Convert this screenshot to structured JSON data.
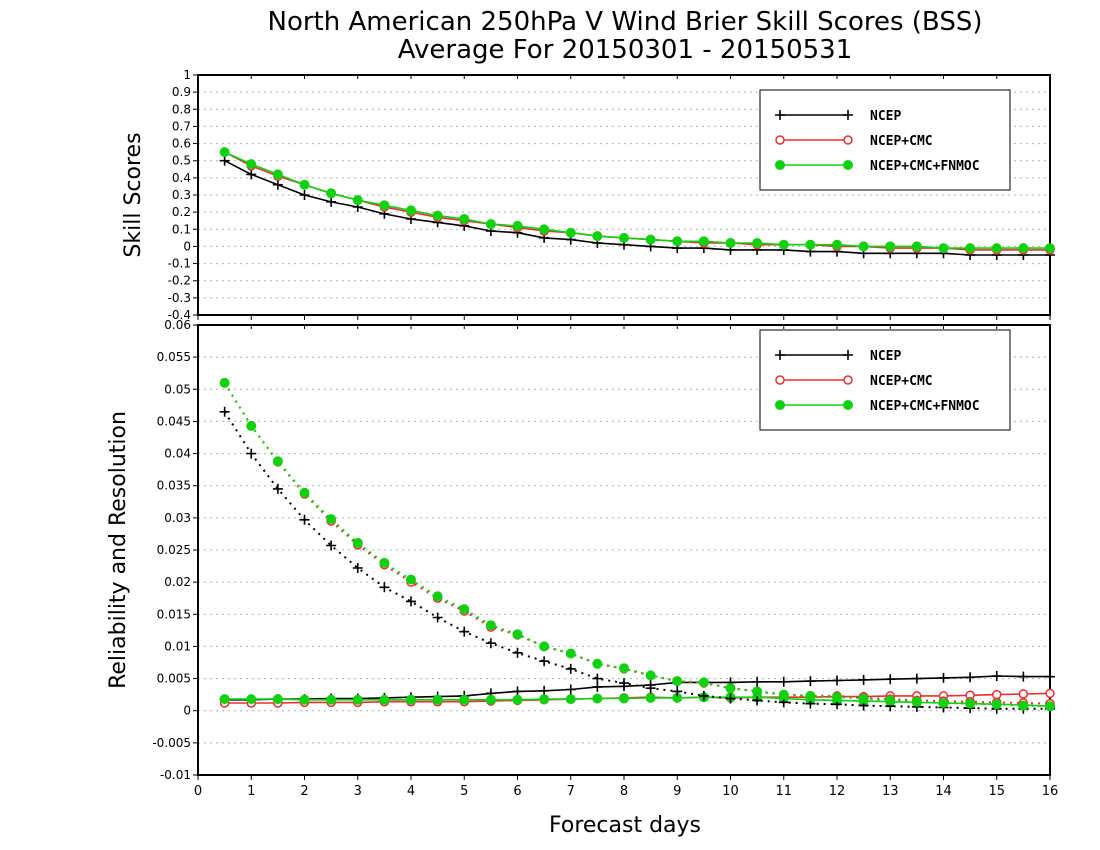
{
  "title_line1": "North American 250hPa V Wind Brier Skill Scores (BSS)",
  "title_line2": "Average For 20150301 - 20150531",
  "x_axis_label": "Forecast days",
  "colors": {
    "NCEP": "#000000",
    "NCEP+CMC": "#e83030",
    "NCEP+CMC+FNMOC": "#10d010"
  },
  "chart_data": [
    {
      "type": "line",
      "ylabel": "Skill Scores",
      "xlim": [
        0,
        16
      ],
      "ylim": [
        -0.4,
        1
      ],
      "yticks": [
        "-0.4",
        "-0.3",
        "-0.2",
        "-0.1",
        "0",
        "0.1",
        "0.2",
        "0.3",
        "0.4",
        "0.5",
        "0.6",
        "0.7",
        "0.8",
        "0.9",
        "1"
      ],
      "xticks": [
        "0",
        "1",
        "2",
        "3",
        "4",
        "5",
        "6",
        "7",
        "8",
        "9",
        "10",
        "11",
        "12",
        "13",
        "14",
        "15",
        "16"
      ],
      "grid": true,
      "legend": "top-right",
      "x": [
        0.5,
        1,
        1.5,
        2,
        2.5,
        3,
        3.5,
        4,
        4.5,
        5,
        5.5,
        6,
        6.5,
        7,
        7.5,
        8,
        8.5,
        9,
        9.5,
        10,
        10.5,
        11,
        11.5,
        12,
        12.5,
        13,
        13.5,
        14,
        14.5,
        15,
        15.5,
        16
      ],
      "series": [
        {
          "name": "NCEP",
          "marker": "plus",
          "style": "solid",
          "values": [
            0.5,
            0.42,
            0.36,
            0.3,
            0.26,
            0.23,
            0.19,
            0.16,
            0.14,
            0.12,
            0.09,
            0.08,
            0.05,
            0.04,
            0.02,
            0.01,
            0.0,
            -0.01,
            -0.01,
            -0.02,
            -0.02,
            -0.02,
            -0.03,
            -0.03,
            -0.04,
            -0.04,
            -0.04,
            -0.04,
            -0.05,
            -0.05,
            -0.05,
            -0.05
          ]
        },
        {
          "name": "NCEP+CMC",
          "marker": "open-circle",
          "style": "solid",
          "values": [
            0.55,
            0.47,
            0.41,
            0.36,
            0.31,
            0.27,
            0.23,
            0.2,
            0.17,
            0.15,
            0.13,
            0.11,
            0.09,
            0.08,
            0.06,
            0.05,
            0.04,
            0.03,
            0.02,
            0.02,
            0.01,
            0.01,
            0.01,
            0.0,
            0.0,
            -0.01,
            -0.01,
            -0.01,
            -0.02,
            -0.02,
            -0.02,
            -0.02
          ]
        },
        {
          "name": "NCEP+CMC+FNMOC",
          "marker": "filled-circle",
          "style": "solid",
          "values": [
            0.55,
            0.48,
            0.42,
            0.36,
            0.31,
            0.27,
            0.24,
            0.21,
            0.18,
            0.16,
            0.13,
            0.12,
            0.1,
            0.08,
            0.06,
            0.05,
            0.04,
            0.03,
            0.03,
            0.02,
            0.02,
            0.01,
            0.01,
            0.01,
            0.0,
            0.0,
            0.0,
            -0.01,
            -0.01,
            -0.01,
            -0.01,
            -0.01
          ]
        }
      ]
    },
    {
      "type": "line",
      "ylabel": "Reliability and Resolution",
      "xlabel": "Forecast days",
      "xlim": [
        0,
        16
      ],
      "ylim": [
        -0.01,
        0.06
      ],
      "yticks": [
        "-0.01",
        "-0.005",
        "0",
        "0.005",
        "0.01",
        "0.015",
        "0.02",
        "0.025",
        "0.03",
        "0.035",
        "0.04",
        "0.045",
        "0.05",
        "0.055",
        "0.06"
      ],
      "xticks": [
        "0",
        "1",
        "2",
        "3",
        "4",
        "5",
        "6",
        "7",
        "8",
        "9",
        "10",
        "11",
        "12",
        "13",
        "14",
        "15",
        "16"
      ],
      "grid": true,
      "legend": "top-right",
      "x": [
        0.5,
        1,
        1.5,
        2,
        2.5,
        3,
        3.5,
        4,
        4.5,
        5,
        5.5,
        6,
        6.5,
        7,
        7.5,
        8,
        8.5,
        9,
        9.5,
        10,
        10.5,
        11,
        11.5,
        12,
        12.5,
        13,
        13.5,
        14,
        14.5,
        15,
        15.5,
        16
      ],
      "series": [
        {
          "name": "NCEP",
          "marker": "plus",
          "style": "solid",
          "values": [
            0.0017,
            0.0017,
            0.0018,
            0.0018,
            0.0019,
            0.0019,
            0.002,
            0.0021,
            0.0022,
            0.0023,
            0.0027,
            0.003,
            0.0031,
            0.0033,
            0.0037,
            0.0038,
            0.004,
            0.0044,
            0.0044,
            0.0044,
            0.0045,
            0.0045,
            0.0046,
            0.0047,
            0.0048,
            0.0049,
            0.005,
            0.0051,
            0.0052,
            0.0054,
            0.0053,
            0.0053
          ]
        },
        {
          "name": "NCEP+CMC",
          "marker": "open-circle",
          "style": "solid",
          "values": [
            0.0012,
            0.0012,
            0.0012,
            0.0013,
            0.0013,
            0.0013,
            0.0014,
            0.0014,
            0.0014,
            0.0014,
            0.0015,
            0.0016,
            0.0017,
            0.0018,
            0.0019,
            0.002,
            0.0021,
            0.002,
            0.0021,
            0.002,
            0.0021,
            0.0021,
            0.0021,
            0.0022,
            0.0022,
            0.0023,
            0.0023,
            0.0023,
            0.0024,
            0.0025,
            0.0026,
            0.0027
          ]
        },
        {
          "name": "NCEP+CMC+FNMOC",
          "marker": "filled-circle",
          "style": "solid",
          "values": [
            0.0018,
            0.0018,
            0.0018,
            0.0017,
            0.0017,
            0.0017,
            0.0017,
            0.0017,
            0.0017,
            0.0017,
            0.0017,
            0.0017,
            0.0018,
            0.0018,
            0.0019,
            0.0019,
            0.002,
            0.002,
            0.0021,
            0.0021,
            0.0021,
            0.0019,
            0.0017,
            0.0016,
            0.0015,
            0.0014,
            0.0013,
            0.0012,
            0.0011,
            0.001,
            0.0009,
            0.0007
          ]
        },
        {
          "name": "",
          "legend_of": "NCEP",
          "marker": "plus",
          "style": "dotted",
          "values": [
            0.0465,
            0.04,
            0.0345,
            0.0297,
            0.0257,
            0.0222,
            0.0192,
            0.017,
            0.0145,
            0.0123,
            0.0105,
            0.009,
            0.0077,
            0.0065,
            0.005,
            0.0043,
            0.0035,
            0.003,
            0.0023,
            0.0019,
            0.0016,
            0.0013,
            0.0011,
            0.001,
            0.0008,
            0.0007,
            0.0006,
            0.0005,
            0.0004,
            0.0003,
            0.0003,
            0.0003
          ]
        },
        {
          "name": "",
          "legend_of": "NCEP+CMC",
          "marker": "open-circle",
          "style": "dotted",
          "values": [
            0.051,
            0.0443,
            0.0387,
            0.0337,
            0.0295,
            0.0258,
            0.0227,
            0.02,
            0.0175,
            0.0155,
            0.013,
            0.0118,
            0.01,
            0.0089,
            0.0073,
            0.0065,
            0.0055,
            0.0046,
            0.0043,
            0.0035,
            0.003,
            0.0025,
            0.0023,
            0.0023,
            0.002,
            0.0018,
            0.0016,
            0.0015,
            0.0014,
            0.0013,
            0.0012,
            0.0011
          ]
        },
        {
          "name": "",
          "legend_of": "NCEP+CMC+FNMOC",
          "marker": "filled-circle",
          "style": "dotted",
          "values": [
            0.051,
            0.0443,
            0.0388,
            0.0339,
            0.0298,
            0.0261,
            0.023,
            0.0204,
            0.0178,
            0.0158,
            0.0133,
            0.0119,
            0.01,
            0.0089,
            0.0073,
            0.0066,
            0.0055,
            0.0046,
            0.0044,
            0.0035,
            0.003,
            0.0025,
            0.0023,
            0.0021,
            0.0019,
            0.0016,
            0.0014,
            0.0012,
            0.0011,
            0.001,
            0.0008,
            0.0007
          ]
        }
      ]
    }
  ]
}
